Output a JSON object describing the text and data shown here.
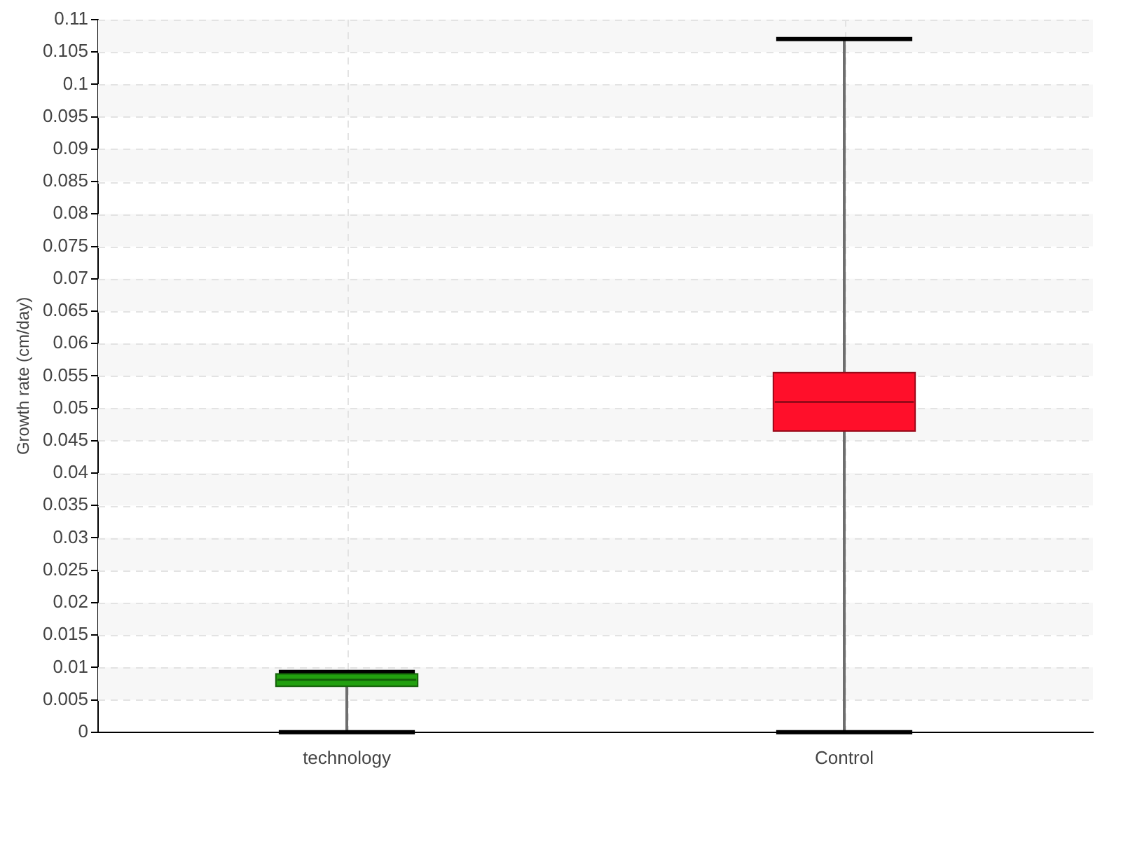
{
  "chart_data": {
    "type": "box",
    "ylabel": "Growth rate (cm/day)",
    "categories": [
      "technology",
      "Control"
    ],
    "boxes": [
      {
        "low": 0,
        "q1": 0.0071,
        "median": 0.0081,
        "q3": 0.009,
        "high": 0.0093
      },
      {
        "low": 0,
        "q1": 0.0465,
        "median": 0.051,
        "q3": 0.0555,
        "high": 0.107
      }
    ],
    "colors": [
      "#22a00f",
      "#ff0f2a"
    ],
    "ylim": [
      0,
      0.11
    ],
    "yticks": [
      0,
      0.005,
      0.01,
      0.015,
      0.02,
      0.025,
      0.03,
      0.035,
      0.04,
      0.045,
      0.05,
      0.055,
      0.06,
      0.065,
      0.07,
      0.075,
      0.08,
      0.085,
      0.09,
      0.095,
      0.1,
      0.105,
      0.11
    ],
    "grid": true
  }
}
